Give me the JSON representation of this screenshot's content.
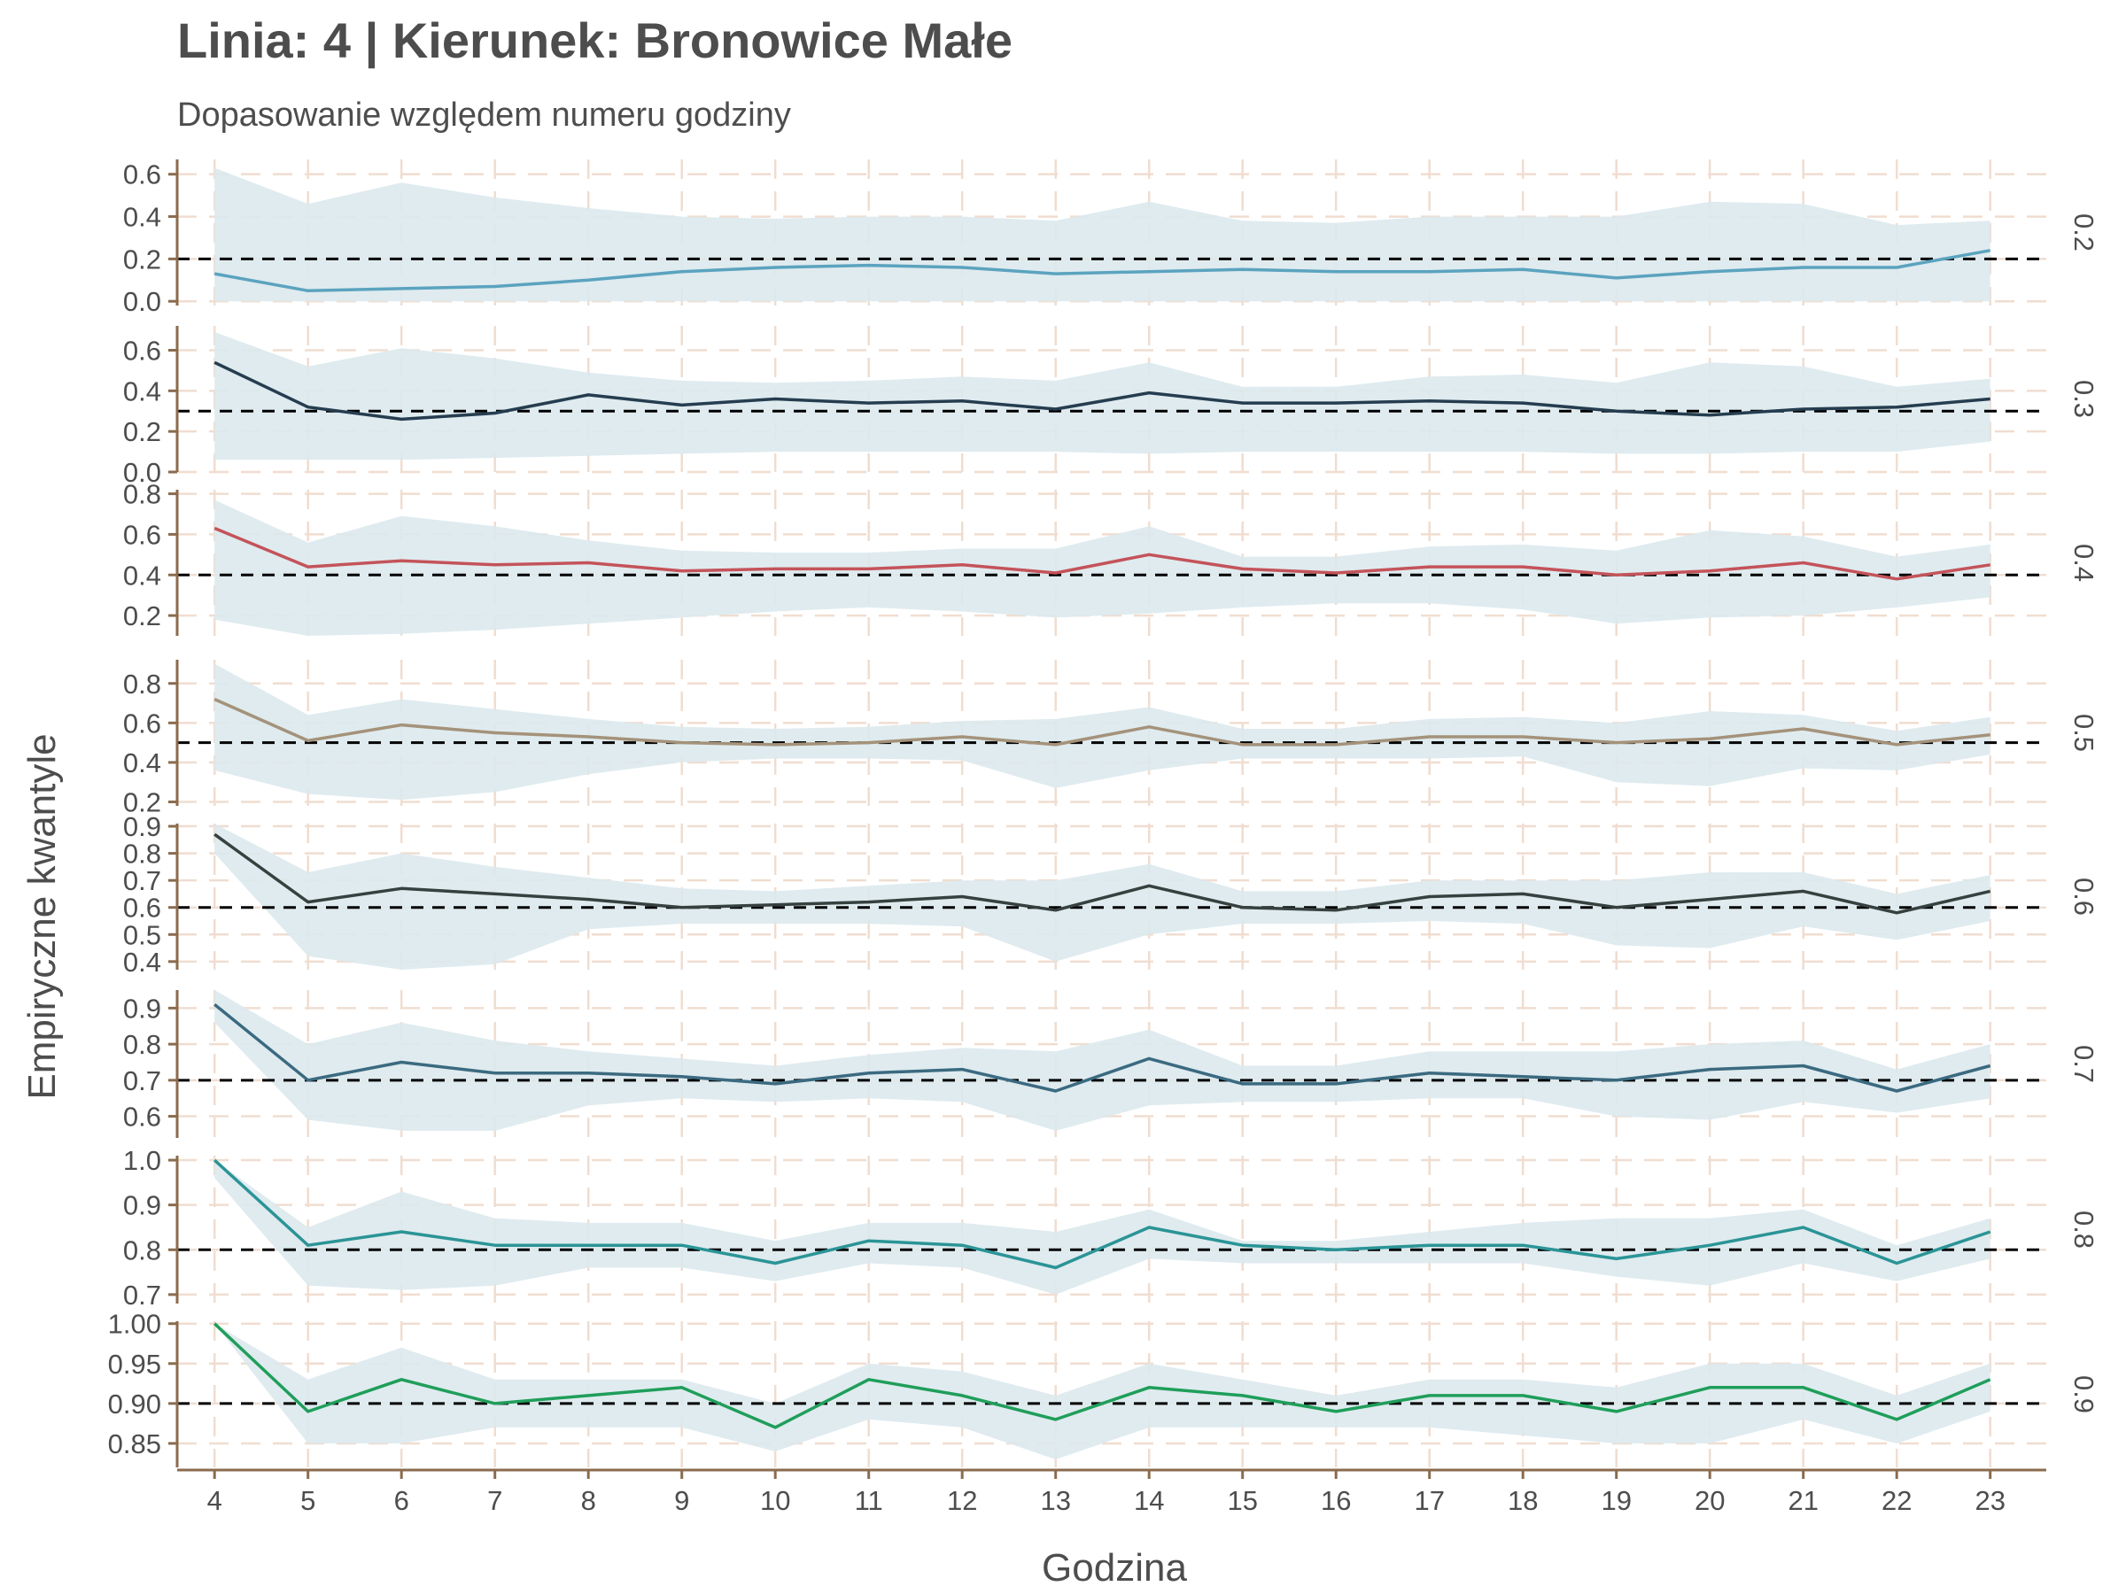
{
  "chart_data": {
    "type": "line",
    "title": "Linia: 4 | Kierunek: Bronowice Małe",
    "subtitle": "Dopasowanie względem numeru godziny",
    "xlabel": "Godzina",
    "ylabel": "Empiryczne kwantyle",
    "x": [
      4,
      5,
      6,
      7,
      8,
      9,
      10,
      11,
      12,
      13,
      14,
      15,
      16,
      17,
      18,
      19,
      20,
      21,
      22,
      23
    ],
    "xlim": [
      3.6,
      23.6
    ],
    "grid": true,
    "panels": [
      {
        "label": "0.2",
        "reference": 0.2,
        "color": "#5ba3bf",
        "ylim": [
          -0.02,
          0.67
        ],
        "ticks": [
          "0.0",
          "0.2",
          "0.4",
          "0.6"
        ],
        "values": [
          0.13,
          0.05,
          0.06,
          0.07,
          0.1,
          0.14,
          0.16,
          0.17,
          0.16,
          0.13,
          0.14,
          0.15,
          0.14,
          0.14,
          0.15,
          0.11,
          0.14,
          0.16,
          0.16,
          0.24
        ],
        "band_upper": [
          0.63,
          0.46,
          0.56,
          0.49,
          0.44,
          0.4,
          0.39,
          0.4,
          0.4,
          0.38,
          0.47,
          0.38,
          0.37,
          0.4,
          0.4,
          0.4,
          0.47,
          0.46,
          0.36,
          0.38
        ],
        "band_lower": [
          0.0,
          0.0,
          0.0,
          0.0,
          0.0,
          0.0,
          0.0,
          0.0,
          0.0,
          0.0,
          0.0,
          0.0,
          0.0,
          0.0,
          0.0,
          0.0,
          0.0,
          0.0,
          0.0,
          0.0
        ]
      },
      {
        "label": "0.3",
        "reference": 0.3,
        "color": "#253d4f",
        "ylim": [
          0.0,
          0.72
        ],
        "ticks": [
          "0.0",
          "0.2",
          "0.4",
          "0.6"
        ],
        "values": [
          0.54,
          0.32,
          0.26,
          0.29,
          0.38,
          0.33,
          0.36,
          0.34,
          0.35,
          0.31,
          0.39,
          0.34,
          0.34,
          0.35,
          0.34,
          0.3,
          0.28,
          0.31,
          0.32,
          0.36
        ],
        "band_upper": [
          0.69,
          0.52,
          0.61,
          0.56,
          0.49,
          0.45,
          0.44,
          0.45,
          0.47,
          0.45,
          0.54,
          0.42,
          0.42,
          0.47,
          0.48,
          0.44,
          0.54,
          0.52,
          0.42,
          0.46
        ],
        "band_lower": [
          0.06,
          0.06,
          0.06,
          0.07,
          0.08,
          0.09,
          0.1,
          0.1,
          0.1,
          0.1,
          0.09,
          0.1,
          0.1,
          0.1,
          0.1,
          0.09,
          0.09,
          0.1,
          0.1,
          0.15
        ]
      },
      {
        "label": "0.4",
        "reference": 0.4,
        "color": "#c4535a",
        "ylim": [
          0.1,
          0.82
        ],
        "ticks": [
          "0.2",
          "0.4",
          "0.6",
          "0.8"
        ],
        "values": [
          0.63,
          0.44,
          0.47,
          0.45,
          0.46,
          0.42,
          0.43,
          0.43,
          0.45,
          0.41,
          0.5,
          0.43,
          0.41,
          0.44,
          0.44,
          0.4,
          0.42,
          0.46,
          0.38,
          0.45
        ],
        "band_upper": [
          0.77,
          0.56,
          0.69,
          0.64,
          0.57,
          0.52,
          0.51,
          0.51,
          0.53,
          0.53,
          0.64,
          0.49,
          0.49,
          0.54,
          0.55,
          0.52,
          0.62,
          0.59,
          0.49,
          0.55
        ],
        "band_lower": [
          0.18,
          0.1,
          0.11,
          0.13,
          0.16,
          0.19,
          0.22,
          0.24,
          0.22,
          0.19,
          0.21,
          0.24,
          0.26,
          0.26,
          0.23,
          0.16,
          0.19,
          0.2,
          0.24,
          0.29
        ]
      },
      {
        "label": "0.5",
        "reference": 0.5,
        "color": "#a4927a",
        "ylim": [
          0.18,
          0.92
        ],
        "ticks": [
          "0.2",
          "0.4",
          "0.6",
          "0.8"
        ],
        "values": [
          0.72,
          0.51,
          0.59,
          0.55,
          0.53,
          0.5,
          0.49,
          0.5,
          0.53,
          0.49,
          0.58,
          0.49,
          0.49,
          0.53,
          0.53,
          0.5,
          0.52,
          0.57,
          0.49,
          0.54
        ],
        "band_upper": [
          0.9,
          0.64,
          0.72,
          0.67,
          0.62,
          0.58,
          0.57,
          0.58,
          0.61,
          0.62,
          0.68,
          0.57,
          0.57,
          0.62,
          0.63,
          0.6,
          0.66,
          0.64,
          0.56,
          0.63
        ],
        "band_lower": [
          0.36,
          0.24,
          0.21,
          0.25,
          0.34,
          0.4,
          0.42,
          0.42,
          0.41,
          0.27,
          0.36,
          0.42,
          0.42,
          0.42,
          0.43,
          0.3,
          0.28,
          0.37,
          0.36,
          0.44
        ]
      },
      {
        "label": "0.6",
        "reference": 0.6,
        "color": "#36413f",
        "ylim": [
          0.37,
          0.91
        ],
        "ticks": [
          "0.4",
          "0.5",
          "0.6",
          "0.7",
          "0.8",
          "0.9"
        ],
        "values": [
          0.87,
          0.62,
          0.67,
          0.65,
          0.63,
          0.6,
          0.61,
          0.62,
          0.64,
          0.59,
          0.68,
          0.6,
          0.59,
          0.64,
          0.65,
          0.6,
          0.63,
          0.66,
          0.58,
          0.66
        ],
        "band_upper": [
          0.91,
          0.73,
          0.8,
          0.75,
          0.71,
          0.67,
          0.66,
          0.68,
          0.7,
          0.7,
          0.76,
          0.66,
          0.66,
          0.7,
          0.7,
          0.7,
          0.73,
          0.73,
          0.65,
          0.72
        ],
        "band_lower": [
          0.8,
          0.42,
          0.37,
          0.39,
          0.52,
          0.54,
          0.54,
          0.54,
          0.53,
          0.4,
          0.5,
          0.54,
          0.54,
          0.55,
          0.54,
          0.46,
          0.45,
          0.53,
          0.48,
          0.55
        ]
      },
      {
        "label": "0.7",
        "reference": 0.7,
        "color": "#3b6a80",
        "ylim": [
          0.54,
          0.95
        ],
        "ticks": [
          "0.6",
          "0.7",
          "0.8",
          "0.9"
        ],
        "values": [
          0.91,
          0.7,
          0.75,
          0.72,
          0.72,
          0.71,
          0.69,
          0.72,
          0.73,
          0.67,
          0.76,
          0.69,
          0.69,
          0.72,
          0.71,
          0.7,
          0.73,
          0.74,
          0.67,
          0.74
        ],
        "band_upper": [
          0.95,
          0.8,
          0.86,
          0.81,
          0.78,
          0.76,
          0.74,
          0.77,
          0.79,
          0.78,
          0.84,
          0.74,
          0.74,
          0.78,
          0.78,
          0.78,
          0.8,
          0.81,
          0.73,
          0.8
        ],
        "band_lower": [
          0.86,
          0.59,
          0.56,
          0.56,
          0.63,
          0.65,
          0.64,
          0.65,
          0.64,
          0.56,
          0.63,
          0.64,
          0.64,
          0.65,
          0.65,
          0.6,
          0.59,
          0.64,
          0.61,
          0.65
        ]
      },
      {
        "label": "0.8",
        "reference": 0.8,
        "color": "#2b9496",
        "ylim": [
          0.68,
          1.01
        ],
        "ticks": [
          "0.7",
          "0.8",
          "0.9",
          "1.0"
        ],
        "values": [
          1.0,
          0.81,
          0.84,
          0.81,
          0.81,
          0.81,
          0.77,
          0.82,
          0.81,
          0.76,
          0.85,
          0.81,
          0.8,
          0.81,
          0.81,
          0.78,
          0.81,
          0.85,
          0.77,
          0.84
        ],
        "band_upper": [
          1.0,
          0.85,
          0.93,
          0.87,
          0.86,
          0.86,
          0.82,
          0.86,
          0.86,
          0.84,
          0.89,
          0.82,
          0.82,
          0.84,
          0.86,
          0.87,
          0.87,
          0.89,
          0.81,
          0.87
        ],
        "band_lower": [
          0.96,
          0.72,
          0.71,
          0.72,
          0.76,
          0.76,
          0.73,
          0.77,
          0.76,
          0.7,
          0.78,
          0.77,
          0.77,
          0.77,
          0.77,
          0.74,
          0.72,
          0.77,
          0.73,
          0.78
        ]
      },
      {
        "label": "0.9",
        "reference": 0.9,
        "color": "#1f9e5a",
        "ylim": [
          0.82,
          1.003
        ],
        "ticks": [
          "0.85",
          "0.90",
          "0.95",
          "1.00"
        ],
        "values": [
          1.0,
          0.89,
          0.93,
          0.9,
          0.91,
          0.92,
          0.87,
          0.93,
          0.91,
          0.88,
          0.92,
          0.91,
          0.89,
          0.91,
          0.91,
          0.89,
          0.92,
          0.92,
          0.88,
          0.93
        ],
        "band_upper": [
          1.0,
          0.93,
          0.97,
          0.93,
          0.93,
          0.93,
          0.9,
          0.95,
          0.94,
          0.91,
          0.95,
          0.93,
          0.91,
          0.93,
          0.93,
          0.92,
          0.95,
          0.95,
          0.91,
          0.95
        ],
        "band_lower": [
          1.0,
          0.85,
          0.85,
          0.87,
          0.87,
          0.87,
          0.84,
          0.88,
          0.87,
          0.83,
          0.87,
          0.87,
          0.87,
          0.87,
          0.86,
          0.85,
          0.85,
          0.88,
          0.85,
          0.89
        ]
      }
    ]
  },
  "colors": {
    "band": "#dbe9ed",
    "grid": "#f0ddd0",
    "axis": "#8b6b4e",
    "reference": "#000000",
    "text": "#4d4d4d"
  }
}
